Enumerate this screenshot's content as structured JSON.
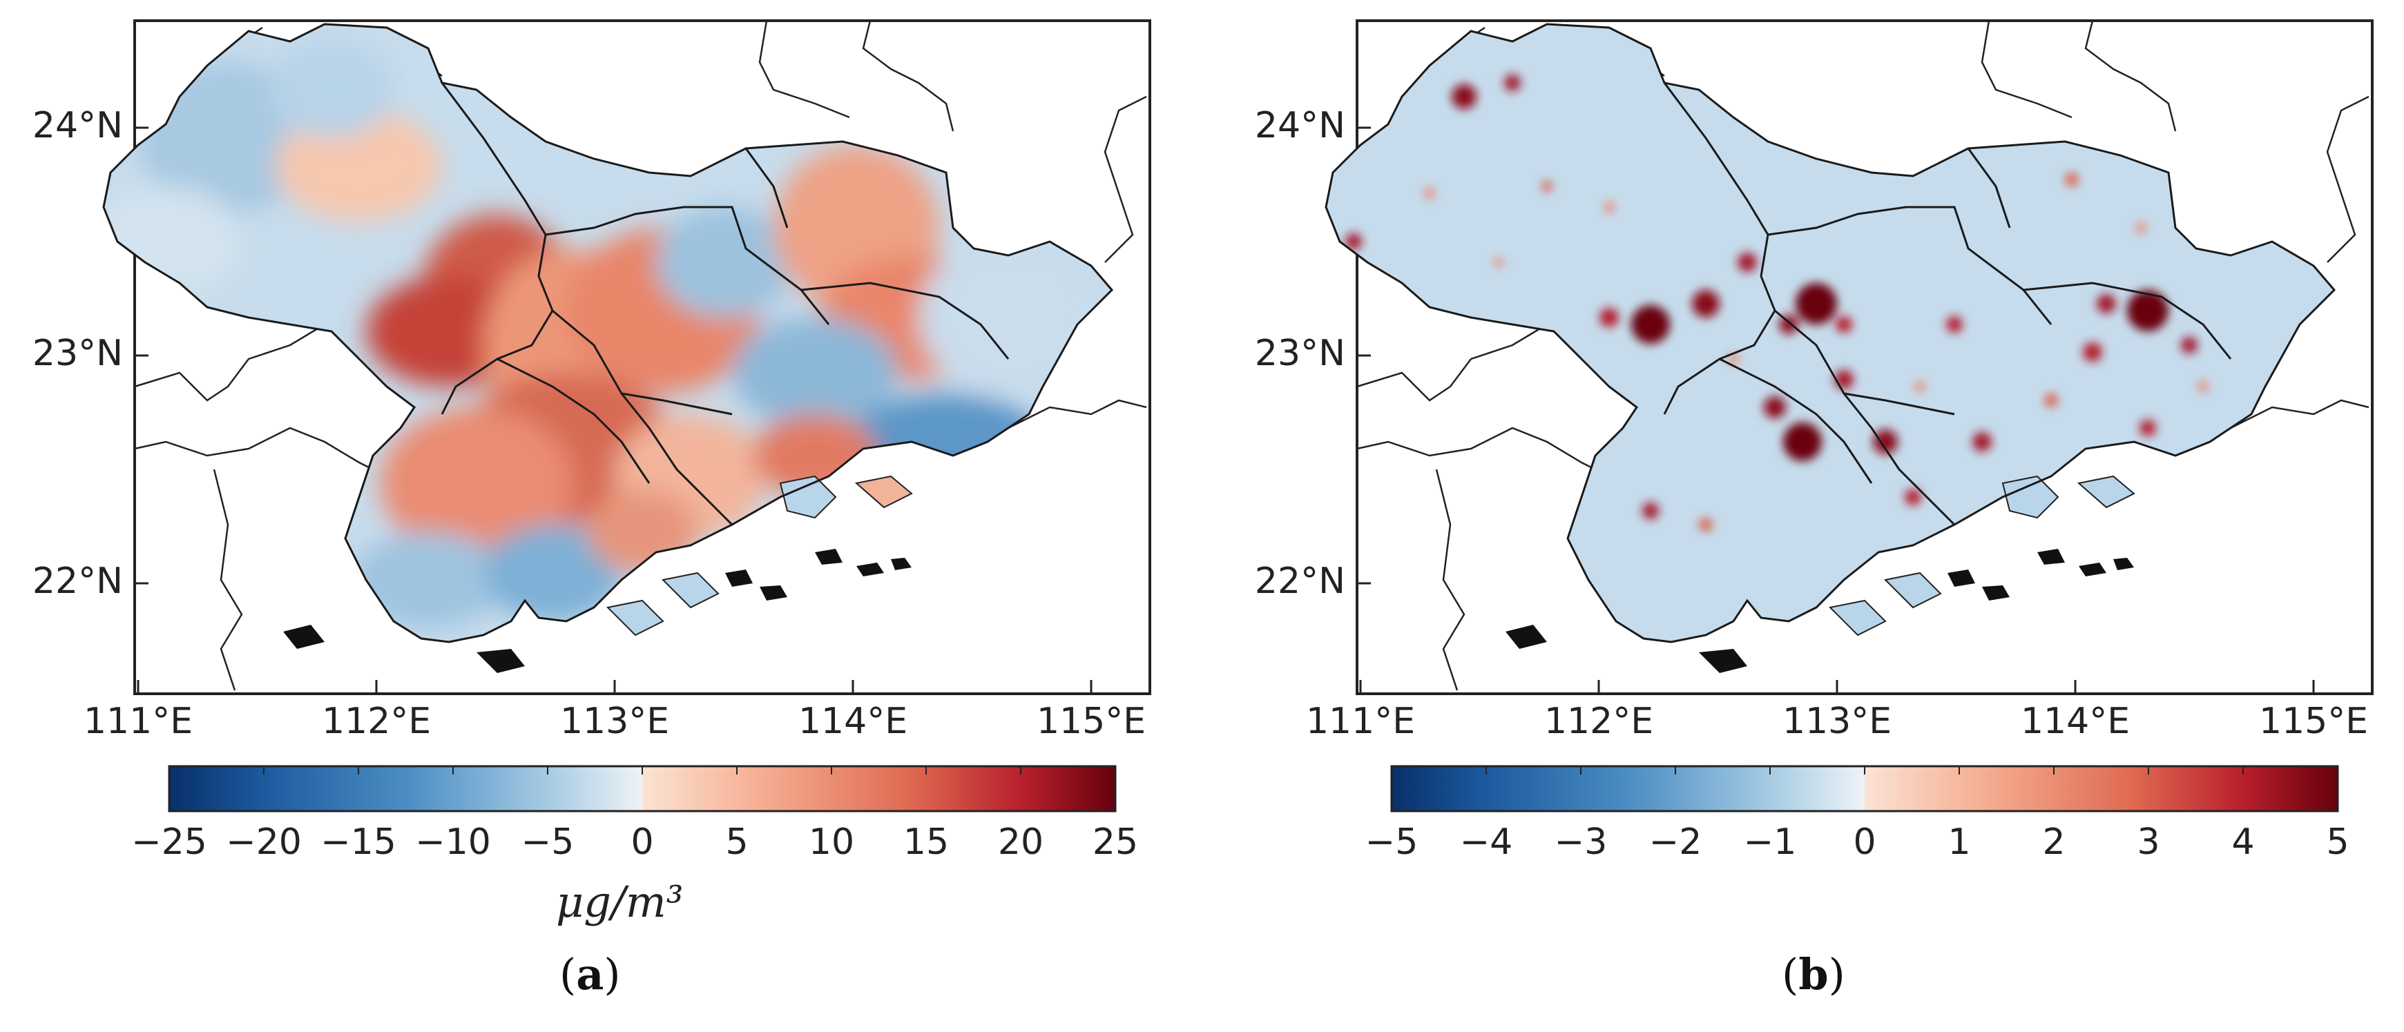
{
  "chart_data": [
    {
      "type": "heatmap",
      "panel": "a",
      "caption_letter": "a",
      "lat_ticks": [
        "24°N",
        "23°N",
        "22°N"
      ],
      "lon_ticks": [
        "111°E",
        "112°E",
        "113°E",
        "114°E",
        "115°E"
      ],
      "lat_values": [
        24,
        23,
        22
      ],
      "lon_values": [
        111,
        112,
        113,
        114,
        115
      ],
      "colorbar": {
        "cmap": "RdBu_r",
        "vmin": -25,
        "vmax": 25,
        "ticks": [
          "−25",
          "−20",
          "−15",
          "−10",
          "−5",
          "0",
          "5",
          "10",
          "15",
          "20",
          "25"
        ],
        "tick_values": [
          -25,
          -20,
          -15,
          -10,
          -5,
          0,
          5,
          10,
          15,
          20,
          25
        ],
        "unit": "μg/m³"
      }
    },
    {
      "type": "heatmap",
      "panel": "b",
      "caption_letter": "b",
      "lat_ticks": [
        "24°N",
        "23°N",
        "22°N"
      ],
      "lon_ticks": [
        "111°E",
        "112°E",
        "113°E",
        "114°E",
        "115°E"
      ],
      "lat_values": [
        24,
        23,
        22
      ],
      "lon_values": [
        111,
        112,
        113,
        114,
        115
      ],
      "colorbar": {
        "cmap": "RdBu_r",
        "vmin": -5,
        "vmax": 5,
        "ticks": [
          "−5",
          "−4",
          "−3",
          "−2",
          "−1",
          "0",
          "1",
          "2",
          "3",
          "4",
          "5"
        ],
        "tick_values": [
          -5,
          -4,
          -3,
          -2,
          -1,
          0,
          1,
          2,
          3,
          4,
          5
        ]
      }
    }
  ]
}
